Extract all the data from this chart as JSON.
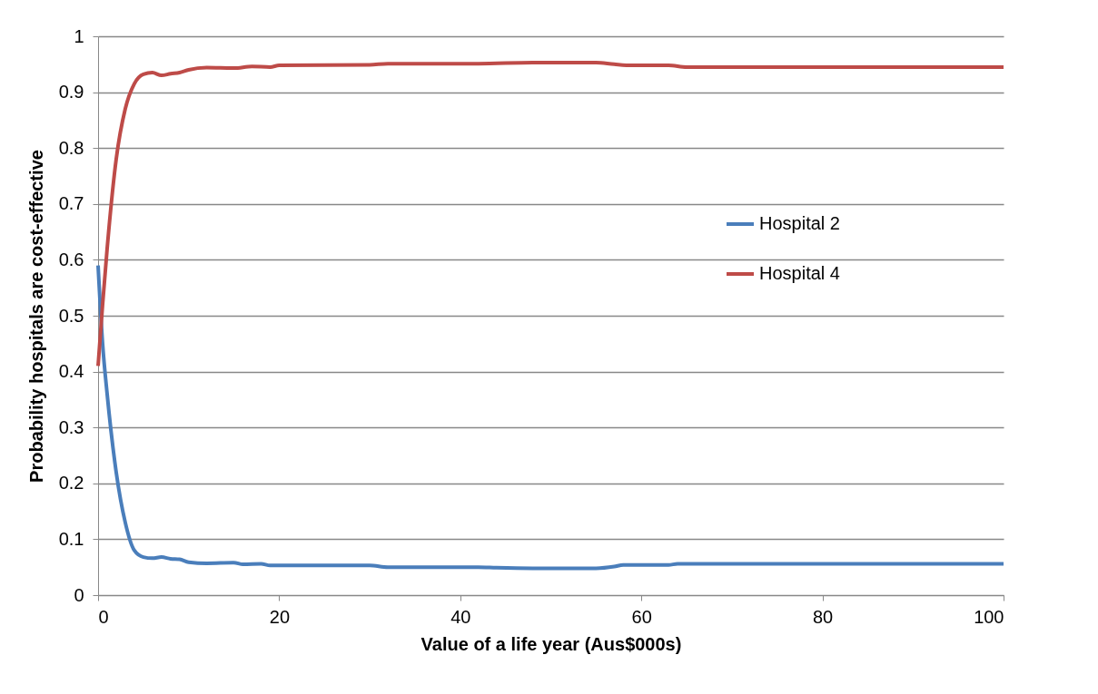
{
  "chart_data": {
    "type": "line",
    "xlabel": "Value of a life year (Aus$000s)",
    "ylabel": "Probability hospitals are cost-effective",
    "xlim": [
      0,
      100
    ],
    "xticks": [
      0,
      20,
      40,
      60,
      80,
      100
    ],
    "ylim": [
      0,
      1
    ],
    "yticks": [
      0,
      0.1,
      0.2,
      0.3,
      0.4,
      0.5,
      0.6,
      0.7,
      0.8,
      0.9,
      1
    ],
    "grid": "y",
    "legend": "right",
    "marker": "none",
    "line_style": "solid",
    "series": [
      {
        "name": "Hospital 2",
        "color": "#4a7ebb",
        "x": [
          0,
          0.5,
          1,
          2,
          3,
          4,
          5,
          6,
          7,
          8,
          9,
          10,
          12,
          15,
          16,
          18,
          19,
          30,
          32,
          42,
          44,
          48,
          55,
          57,
          58,
          63,
          64,
          100
        ],
        "values": [
          0.59,
          0.45,
          0.36,
          0.22,
          0.13,
          0.08,
          0.068,
          0.066,
          0.068,
          0.065,
          0.064,
          0.059,
          0.057,
          0.058,
          0.055,
          0.056,
          0.053,
          0.053,
          0.05,
          0.05,
          0.049,
          0.048,
          0.048,
          0.051,
          0.054,
          0.054,
          0.056,
          0.056
        ]
      },
      {
        "name": "Hospital 4",
        "color": "#be4b48",
        "x": [
          0,
          0.5,
          1,
          2,
          3,
          4,
          5,
          6,
          7,
          8,
          9,
          10,
          12,
          15,
          17,
          19,
          20,
          30,
          32,
          42,
          48,
          55,
          57,
          59,
          63,
          65,
          100
        ],
        "values": [
          0.41,
          0.52,
          0.62,
          0.78,
          0.87,
          0.915,
          0.932,
          0.935,
          0.93,
          0.933,
          0.935,
          0.94,
          0.944,
          0.943,
          0.946,
          0.945,
          0.948,
          0.949,
          0.951,
          0.951,
          0.953,
          0.953,
          0.95,
          0.948,
          0.948,
          0.945,
          0.945
        ]
      }
    ]
  }
}
